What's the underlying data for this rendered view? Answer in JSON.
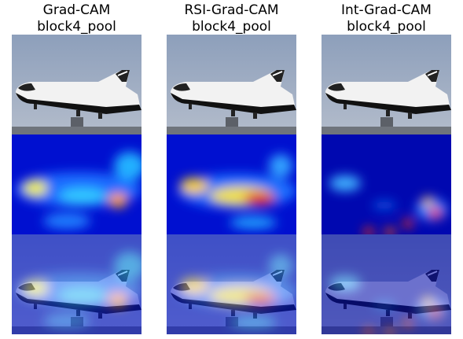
{
  "panels": [
    {
      "title": "Grad-CAM",
      "layer": "block4_pool"
    },
    {
      "title": "RSI-Grad-CAM",
      "layer": "block4_pool"
    },
    {
      "title": "Int-Grad-CAM",
      "layer": "block4_pool"
    }
  ]
}
